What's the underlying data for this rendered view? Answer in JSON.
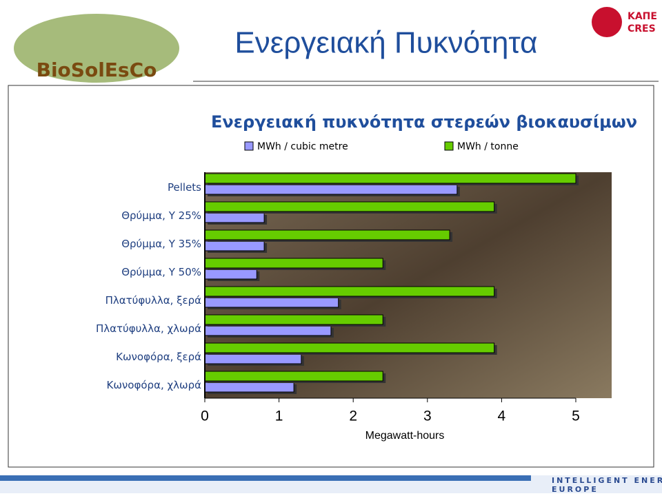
{
  "slide": {
    "title": "Ενεργειακή Πυκνότητα",
    "logo_left": "BioSolEsCo",
    "logo_right": [
      "ΚΑΠΕ",
      "CRES"
    ],
    "footer": [
      "INTELLIGENT ENERGY",
      "EUROPE"
    ]
  },
  "chart_data": {
    "type": "bar",
    "orientation": "horizontal",
    "title": "Ενεργειακή πυκνότητα στερεών βιοκαυσίμων",
    "x_label": "Megawatt-hours",
    "categories": [
      "Pellets",
      "Θρύμμα, Υ 25%",
      "Θρύμμα, Υ 35%",
      "Θρύμμα, Υ 50%",
      "Πλατύφυλλα, ξερά",
      "Πλατύφυλλα, χλωρά",
      "Κωνοφόρα, ξερά",
      "Κωνοφόρα, χλωρά"
    ],
    "series": [
      {
        "name": "MWh / cubic metre",
        "color": "#9999ff",
        "values": [
          3.4,
          0.8,
          0.8,
          0.7,
          1.8,
          1.7,
          1.3,
          1.2
        ]
      },
      {
        "name": "MWh / tonne",
        "color": "#66cc00",
        "values": [
          5.0,
          3.9,
          3.3,
          2.4,
          3.9,
          2.4,
          3.9,
          2.4
        ]
      }
    ],
    "xlim": [
      0,
      5
    ],
    "xticks": [
      0,
      1,
      2,
      3,
      4,
      5
    ],
    "legend": "top",
    "grid": false
  }
}
